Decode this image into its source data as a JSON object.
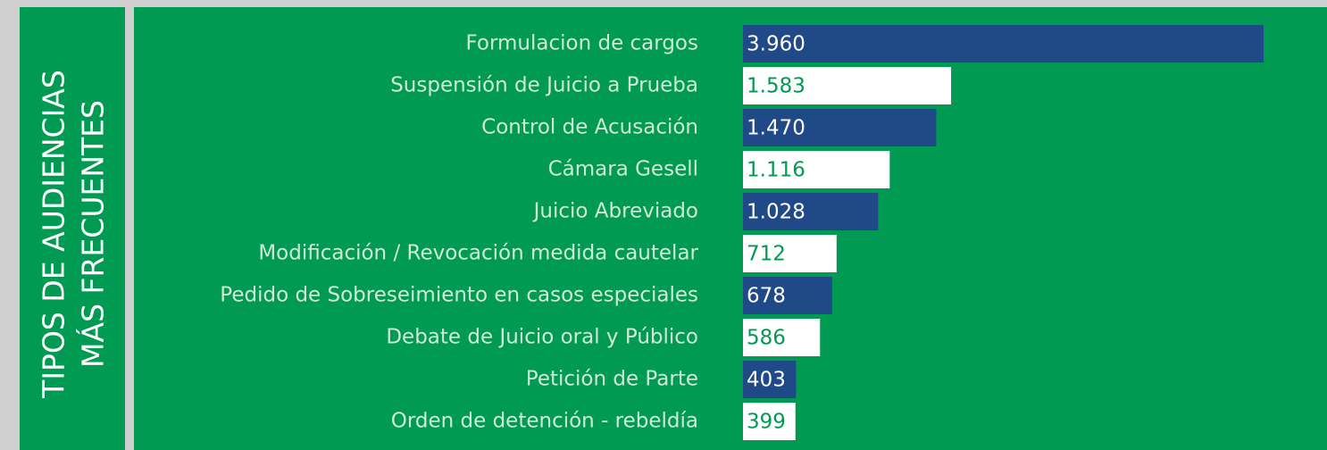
{
  "chart_data": {
    "type": "barh",
    "title": [
      "TIPOS DE AUDIENCIAS",
      "MÁS FRECUENTES"
    ],
    "categories": [
      "Formulacion de cargos",
      "Suspensión de Juicio a Prueba",
      "Control de Acusación",
      "Cámara Gesell",
      "Juicio Abreviado",
      "Modificación / Revocación medida cautelar",
      "Pedido de Sobreseimiento en casos especiales",
      "Debate de Juicio oral y Público",
      "Petición de Parte",
      "Orden de detención - rebeldía"
    ],
    "values": [
      3960,
      1583,
      1470,
      1116,
      1028,
      712,
      678,
      586,
      403,
      399
    ],
    "value_labels": [
      "3.960",
      "1.583",
      "1.470",
      "1.116",
      "1.028",
      "712",
      "678",
      "586",
      "403",
      "399"
    ],
    "colors": [
      "#1f4a87",
      "#ffffff",
      "#1f4a87",
      "#ffffff",
      "#1f4a87",
      "#ffffff",
      "#1f4a87",
      "#ffffff",
      "#1f4a87",
      "#ffffff"
    ]
  }
}
